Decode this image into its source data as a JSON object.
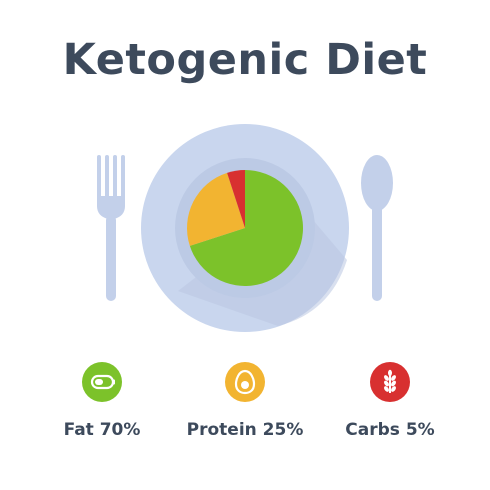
{
  "title": "Ketogenic Diet",
  "colors": {
    "fat": "#7cc22a",
    "protein": "#f2b431",
    "carbs": "#d83030",
    "plate": "#c9d6ee",
    "plate_shadow": "#b3c2df",
    "cutlery": "#c3d0ea",
    "title_text": "#3d4a5c"
  },
  "legend": [
    {
      "label": "Fat 70%",
      "icon": "oil-bottle-icon",
      "color": "#7cc22a"
    },
    {
      "label": "Protein 25%",
      "icon": "egg-icon",
      "color": "#f2b431"
    },
    {
      "label": "Carbs 5%",
      "icon": "wheat-icon",
      "color": "#d83030"
    }
  ],
  "chart_data": {
    "type": "pie",
    "title": "Ketogenic Diet",
    "slices": [
      {
        "label": "Fat 70%",
        "value": 70,
        "color": "#7cc22a"
      },
      {
        "label": "Protein 25%",
        "value": 25,
        "color": "#f2b431"
      },
      {
        "label": "Carbs 5%",
        "value": 5,
        "color": "#d83030"
      }
    ]
  }
}
